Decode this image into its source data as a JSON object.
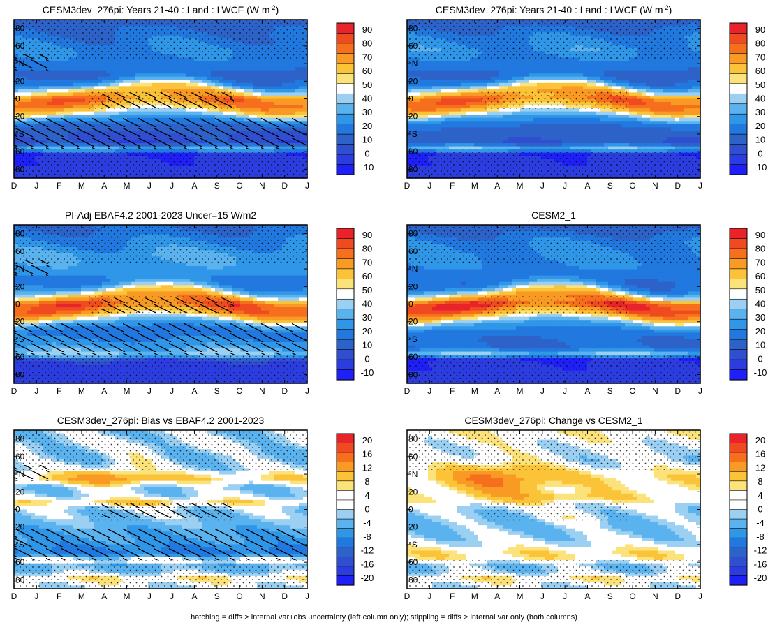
{
  "footnote": "hatching = diffs > internal var+obs uncertainty (left column only); stippling = diffs > internal var only (both columns)",
  "months": [
    "D",
    "J",
    "F",
    "M",
    "A",
    "M",
    "J",
    "J",
    "A",
    "S",
    "O",
    "N",
    "D",
    "J"
  ],
  "lat_ticks": [
    "80",
    "60",
    "°N",
    "20",
    "0",
    "20",
    "°S",
    "60",
    "80"
  ],
  "scale_abs": {
    "levels": [
      "90",
      "80",
      "70",
      "60",
      "50",
      "40",
      "30",
      "20",
      "10",
      "0",
      "-10"
    ],
    "colors": [
      "#e8232a",
      "#f04a20",
      "#f56f1c",
      "#f89a23",
      "#fac338",
      "#fbe27a",
      "#ffffff",
      "#9bd0f2",
      "#5ab2ee",
      "#2f96e8",
      "#2178df",
      "#2d63c8",
      "#2f4fd0",
      "#2c3de0",
      "#1f1ff8"
    ]
  },
  "scale_diff": {
    "levels": [
      "20",
      "16",
      "12",
      "8",
      "4",
      "0",
      "-4",
      "-8",
      "-12",
      "-16",
      "-20"
    ],
    "colors": [
      "#e8232a",
      "#f04a20",
      "#f56f1c",
      "#f89a23",
      "#fac338",
      "#fbe27a",
      "#ffffff",
      "#ffffff",
      "#9bd0f2",
      "#5ab2ee",
      "#2f96e8",
      "#2178df",
      "#2d63c8",
      "#2f4fd0",
      "#2c3de0",
      "#1f1ff8"
    ]
  },
  "chart_data": [
    {
      "type": "heatmap",
      "title": "CESM3dev_276pi: Years 21-40 : Land : LWCF (W m",
      "title_sup": "-2",
      "title_end": ")",
      "scale": "abs",
      "zonal_profile": [
        [
          -90,
          3
        ],
        [
          -75,
          3
        ],
        [
          -68,
          3
        ],
        [
          -62,
          0
        ],
        [
          -58,
          38
        ],
        [
          -50,
          12
        ],
        [
          -40,
          14
        ],
        [
          -30,
          18
        ],
        [
          -20,
          28
        ],
        [
          -10,
          44
        ],
        [
          0,
          50
        ],
        [
          5,
          36
        ],
        [
          15,
          22
        ],
        [
          25,
          18
        ],
        [
          40,
          22
        ],
        [
          55,
          25
        ],
        [
          70,
          22
        ],
        [
          85,
          18
        ]
      ],
      "itcz_lat": [
        -12,
        -10,
        -4,
        0,
        5,
        10,
        12,
        12,
        10,
        4,
        -3,
        -10,
        -12,
        -12
      ],
      "itcz_peak": 52,
      "hatched": true,
      "stippled": true
    },
    {
      "type": "heatmap",
      "title": "CESM3dev_276pi: Years 21-40 : Land : LWCF (W m",
      "title_sup": "-2",
      "title_end": ")",
      "scale": "abs",
      "zonal_profile": [
        [
          -90,
          3
        ],
        [
          -75,
          3
        ],
        [
          -68,
          3
        ],
        [
          -62,
          0
        ],
        [
          -58,
          38
        ],
        [
          -50,
          16
        ],
        [
          -40,
          18
        ],
        [
          -30,
          20
        ],
        [
          -20,
          28
        ],
        [
          -10,
          44
        ],
        [
          0,
          50
        ],
        [
          5,
          36
        ],
        [
          15,
          22
        ],
        [
          25,
          18
        ],
        [
          40,
          22
        ],
        [
          55,
          27
        ],
        [
          70,
          24
        ],
        [
          85,
          18
        ]
      ],
      "itcz_lat": [
        -12,
        -10,
        -4,
        0,
        5,
        10,
        12,
        12,
        10,
        4,
        -3,
        -10,
        -12,
        -12
      ],
      "itcz_peak": 54,
      "hatched": false,
      "stippled": true
    },
    {
      "type": "heatmap",
      "title": "PI-Adj EBAF4.2 2001-2023 Uncer=15 W/m2",
      "title_sup": "",
      "title_end": "",
      "scale": "abs",
      "zonal_profile": [
        [
          -90,
          5
        ],
        [
          -75,
          5
        ],
        [
          -68,
          5
        ],
        [
          -62,
          15
        ],
        [
          -58,
          38
        ],
        [
          -50,
          30
        ],
        [
          -40,
          25
        ],
        [
          -30,
          22
        ],
        [
          -20,
          28
        ],
        [
          -10,
          44
        ],
        [
          0,
          54
        ],
        [
          5,
          38
        ],
        [
          15,
          25
        ],
        [
          25,
          22
        ],
        [
          40,
          28
        ],
        [
          55,
          30
        ],
        [
          70,
          25
        ],
        [
          85,
          20
        ]
      ],
      "itcz_lat": [
        -12,
        -10,
        -4,
        0,
        5,
        10,
        12,
        12,
        10,
        4,
        -3,
        -10,
        -12,
        -12
      ],
      "itcz_peak": 58,
      "hatched": true,
      "stippled": true
    },
    {
      "type": "heatmap",
      "title": "CESM2_1",
      "title_sup": "",
      "title_end": "",
      "scale": "abs",
      "zonal_profile": [
        [
          -90,
          3
        ],
        [
          -75,
          3
        ],
        [
          -68,
          3
        ],
        [
          -62,
          0
        ],
        [
          -58,
          38
        ],
        [
          -50,
          20
        ],
        [
          -40,
          20
        ],
        [
          -30,
          22
        ],
        [
          -20,
          30
        ],
        [
          -10,
          46
        ],
        [
          0,
          58
        ],
        [
          5,
          36
        ],
        [
          15,
          22
        ],
        [
          25,
          20
        ],
        [
          40,
          24
        ],
        [
          55,
          26
        ],
        [
          70,
          24
        ],
        [
          85,
          18
        ]
      ],
      "itcz_lat": [
        -12,
        -10,
        -4,
        0,
        5,
        10,
        12,
        12,
        10,
        4,
        -3,
        -10,
        -12,
        -12
      ],
      "itcz_peak": 62,
      "hatched": false,
      "stippled": true
    },
    {
      "type": "heatmap",
      "title": "CESM3dev_276pi: Bias vs EBAF4.2 2001-2023",
      "title_sup": "",
      "title_end": "",
      "scale": "diff",
      "zonal_profile": [
        [
          -90,
          -2
        ],
        [
          -78,
          2
        ],
        [
          -70,
          -4
        ],
        [
          -62,
          -6
        ],
        [
          -58,
          2
        ],
        [
          -50,
          -14
        ],
        [
          -40,
          -10
        ],
        [
          -30,
          -8
        ],
        [
          -20,
          -6
        ],
        [
          -10,
          -4
        ],
        [
          0,
          -3
        ],
        [
          8,
          2
        ],
        [
          15,
          -2
        ],
        [
          25,
          -4
        ],
        [
          35,
          4
        ],
        [
          45,
          -2
        ],
        [
          60,
          -4
        ],
        [
          75,
          -2
        ],
        [
          85,
          -3
        ]
      ],
      "blobs": [
        [
          4.3,
          35,
          1.2,
          8,
          8
        ],
        [
          5.5,
          58,
          0.8,
          10,
          4
        ],
        [
          6,
          8,
          2.5,
          3,
          3
        ]
      ],
      "hatched": true,
      "stippled": true
    },
    {
      "type": "heatmap",
      "title": "CESM3dev_276pi: Change vs CESM2_1",
      "title_sup": "",
      "title_end": "",
      "scale": "diff",
      "zonal_profile": [
        [
          -90,
          -2
        ],
        [
          -78,
          2
        ],
        [
          -70,
          -3
        ],
        [
          -62,
          -4
        ],
        [
          -58,
          1
        ],
        [
          -50,
          3
        ],
        [
          -40,
          -1
        ],
        [
          -30,
          -3
        ],
        [
          -20,
          -4
        ],
        [
          -10,
          -4
        ],
        [
          0,
          -3
        ],
        [
          10,
          1
        ],
        [
          20,
          1
        ],
        [
          35,
          3
        ],
        [
          55,
          -2
        ],
        [
          70,
          -1
        ],
        [
          85,
          1
        ]
      ],
      "blobs": [
        [
          4,
          35,
          1.5,
          15,
          10
        ],
        [
          7,
          15,
          2,
          4,
          4
        ],
        [
          7.5,
          -8,
          1.2,
          6,
          4
        ]
      ],
      "hatched": false,
      "stippled": true
    }
  ]
}
